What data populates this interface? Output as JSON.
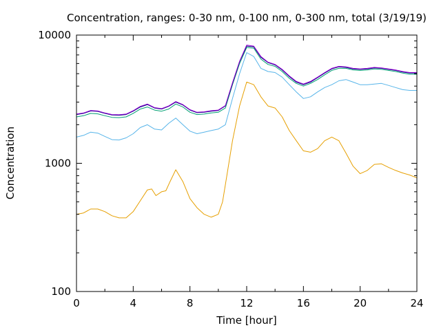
{
  "chart_data": {
    "type": "line",
    "title": "Concentration, ranges: 0-30 nm, 0-100 nm, 0-300 nm, total (3/19/19)",
    "xlabel": "Time [hour]",
    "ylabel": "Concentration",
    "xlim": [
      0,
      24
    ],
    "ylim": [
      100,
      10000
    ],
    "yscale": "log",
    "grid": false,
    "legend": "none",
    "xticks": [
      0,
      4,
      8,
      12,
      16,
      20,
      24
    ],
    "yticks": [
      100,
      1000,
      10000
    ],
    "series": [
      {
        "color": "#e69f00",
        "x": [
          0,
          0.5,
          1,
          1.5,
          2,
          2.5,
          3,
          3.5,
          4,
          4.5,
          5,
          5.3,
          5.6,
          6,
          6.3,
          6.6,
          7,
          7.5,
          8,
          8.5,
          9,
          9.5,
          10,
          10.3,
          10.6,
          11,
          11.5,
          12,
          12.5,
          13,
          13.5,
          14,
          14.5,
          15,
          15.5,
          16,
          16.5,
          17,
          17.5,
          18,
          18.5,
          19,
          19.5,
          20,
          20.5,
          21,
          21.5,
          22,
          22.5,
          23,
          23.5,
          24
        ],
        "y": [
          400,
          410,
          440,
          440,
          420,
          390,
          375,
          375,
          420,
          510,
          620,
          630,
          560,
          600,
          610,
          720,
          890,
          720,
          530,
          450,
          400,
          380,
          400,
          500,
          800,
          1500,
          2800,
          4300,
          4100,
          3300,
          2800,
          2700,
          2300,
          1800,
          1500,
          1250,
          1220,
          1300,
          1500,
          1600,
          1500,
          1200,
          950,
          830,
          880,
          980,
          990,
          930,
          880,
          840,
          810,
          770
        ]
      },
      {
        "color": "#56b4e9",
        "x": [
          0,
          0.5,
          1,
          1.5,
          2,
          2.5,
          3,
          3.5,
          4,
          4.5,
          5,
          5.5,
          6,
          6.5,
          7,
          7.5,
          8,
          8.5,
          9,
          9.5,
          10,
          10.5,
          11,
          11.5,
          12,
          12.5,
          13,
          13.5,
          14,
          14.5,
          15,
          15.5,
          16,
          16.5,
          17,
          17.5,
          18,
          18.5,
          19,
          19.5,
          20,
          20.5,
          21,
          21.5,
          22,
          22.5,
          23,
          23.5,
          24
        ],
        "y": [
          1600,
          1650,
          1750,
          1720,
          1620,
          1530,
          1520,
          1580,
          1700,
          1900,
          2000,
          1850,
          1820,
          2050,
          2250,
          2000,
          1780,
          1700,
          1750,
          1800,
          1850,
          2000,
          3200,
          5000,
          7300,
          6800,
          5500,
          5200,
          5100,
          4700,
          4100,
          3600,
          3200,
          3300,
          3600,
          3900,
          4100,
          4400,
          4500,
          4300,
          4100,
          4100,
          4150,
          4200,
          4050,
          3900,
          3750,
          3700,
          3700
        ]
      },
      {
        "color": "#009e73",
        "x": [
          0,
          0.5,
          1,
          1.5,
          2,
          2.5,
          3,
          3.5,
          4,
          4.5,
          5,
          5.5,
          6,
          6.5,
          7,
          7.5,
          8,
          8.5,
          9,
          9.5,
          10,
          10.5,
          11,
          11.5,
          12,
          12.5,
          13,
          13.5,
          14,
          14.5,
          15,
          15.5,
          16,
          16.5,
          17,
          17.5,
          18,
          18.5,
          19,
          19.5,
          20,
          20.5,
          21,
          21.5,
          22,
          22.5,
          23,
          23.5,
          24
        ],
        "y": [
          2300,
          2350,
          2450,
          2430,
          2350,
          2280,
          2270,
          2300,
          2450,
          2650,
          2750,
          2600,
          2550,
          2650,
          2900,
          2750,
          2500,
          2400,
          2420,
          2470,
          2500,
          2700,
          4100,
          6000,
          8000,
          7900,
          6500,
          5900,
          5700,
          5200,
          4600,
          4200,
          4000,
          4200,
          4500,
          4900,
          5300,
          5500,
          5500,
          5350,
          5300,
          5350,
          5450,
          5400,
          5300,
          5200,
          5050,
          4950,
          4950
        ]
      },
      {
        "color": "#000080",
        "x": [
          0,
          0.5,
          1,
          1.5,
          2,
          2.5,
          3,
          3.5,
          4,
          4.5,
          5,
          5.5,
          6,
          6.5,
          7,
          7.5,
          8,
          8.5,
          9,
          9.5,
          10,
          10.5,
          11,
          11.5,
          12,
          12.5,
          13,
          13.5,
          14,
          14.5,
          15,
          15.5,
          16,
          16.5,
          17,
          17.5,
          18,
          18.5,
          19,
          19.5,
          20,
          20.5,
          21,
          21.5,
          22,
          22.5,
          23,
          23.5,
          24
        ],
        "y": [
          2400,
          2450,
          2560,
          2540,
          2450,
          2380,
          2370,
          2400,
          2550,
          2750,
          2870,
          2700,
          2650,
          2780,
          3000,
          2850,
          2600,
          2480,
          2500,
          2550,
          2580,
          2800,
          4200,
          6200,
          8200,
          8100,
          6700,
          6100,
          5850,
          5350,
          4750,
          4300,
          4100,
          4300,
          4650,
          5050,
          5450,
          5650,
          5600,
          5450,
          5400,
          5450,
          5550,
          5500,
          5400,
          5300,
          5150,
          5050,
          5050
        ]
      },
      {
        "color": "#9400d3",
        "x": [
          0,
          0.5,
          1,
          1.5,
          2,
          2.5,
          3,
          3.5,
          4,
          4.5,
          5,
          5.5,
          6,
          6.5,
          7,
          7.5,
          8,
          8.5,
          9,
          9.5,
          10,
          10.5,
          11,
          11.5,
          12,
          12.5,
          13,
          13.5,
          14,
          14.5,
          15,
          15.5,
          16,
          16.5,
          17,
          17.5,
          18,
          18.5,
          19,
          19.5,
          20,
          20.5,
          21,
          21.5,
          22,
          22.5,
          23,
          23.5,
          24
        ],
        "y": [
          2420,
          2470,
          2580,
          2560,
          2470,
          2400,
          2390,
          2420,
          2570,
          2780,
          2900,
          2720,
          2670,
          2800,
          3030,
          2870,
          2620,
          2500,
          2520,
          2570,
          2600,
          2820,
          4250,
          6250,
          8350,
          8200,
          6800,
          6150,
          5900,
          5400,
          4800,
          4350,
          4150,
          4350,
          4700,
          5100,
          5500,
          5700,
          5650,
          5500,
          5450,
          5500,
          5600,
          5550,
          5450,
          5350,
          5200,
          5100,
          5100
        ]
      }
    ]
  }
}
